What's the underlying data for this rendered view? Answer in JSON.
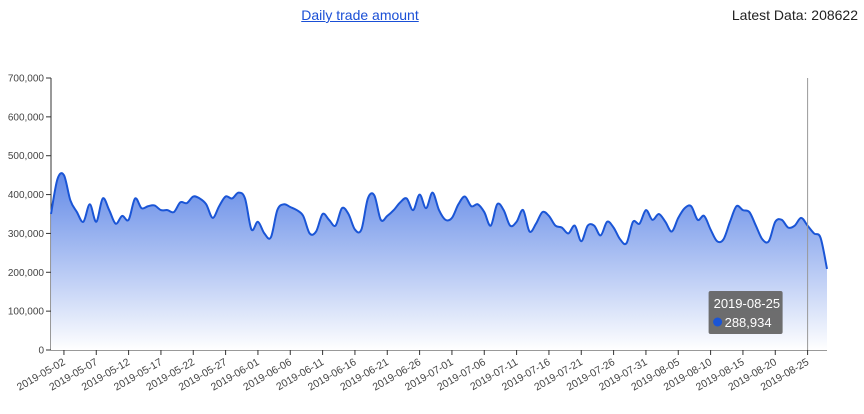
{
  "header": {
    "title_link": "Daily trade amount",
    "latest_label": "Latest Data: ",
    "latest_value": "208622"
  },
  "tooltip": {
    "date": "2019-08-25",
    "value": "288,934"
  },
  "colors": {
    "line": "#1a55d6",
    "area_top": "#5b84e6",
    "area_bottom": "#ffffff",
    "tooltip_bg": "#666666",
    "tooltip_marker": "#1a55d6"
  },
  "chart_data": {
    "type": "area",
    "title": "Daily trade amount",
    "xlabel": "",
    "ylabel": "",
    "ylim": [
      0,
      700000
    ],
    "yticks": [
      "0",
      "100,000",
      "200,000",
      "300,000",
      "400,000",
      "500,000",
      "600,000",
      "700,000"
    ],
    "xticks": [
      "2019-05-02",
      "2019-05-07",
      "2019-05-12",
      "2019-05-17",
      "2019-05-22",
      "2019-05-27",
      "2019-06-01",
      "2019-06-06",
      "2019-06-11",
      "2019-06-16",
      "2019-06-21",
      "2019-06-26",
      "2019-07-01",
      "2019-07-06",
      "2019-07-11",
      "2019-07-16",
      "2019-07-21",
      "2019-07-26",
      "2019-07-31",
      "2019-08-05",
      "2019-08-10",
      "2019-08-15",
      "2019-08-20",
      "2019-08-25"
    ],
    "x_start": "2019-04-30",
    "grid": false,
    "series": [
      {
        "values": [
          350000,
          440000,
          450000,
          385000,
          355000,
          330000,
          375000,
          330000,
          390000,
          360000,
          325000,
          345000,
          335000,
          390000,
          365000,
          370000,
          372000,
          360000,
          360000,
          355000,
          380000,
          378000,
          395000,
          390000,
          375000,
          340000,
          370000,
          395000,
          390000,
          405000,
          390000,
          310000,
          330000,
          300000,
          290000,
          360000,
          375000,
          368000,
          360000,
          345000,
          300000,
          305000,
          350000,
          335000,
          320000,
          365000,
          350000,
          310000,
          310000,
          390000,
          398000,
          335000,
          345000,
          360000,
          380000,
          390000,
          360000,
          400000,
          365000,
          405000,
          360000,
          335000,
          340000,
          375000,
          395000,
          370000,
          375000,
          355000,
          320000,
          375000,
          360000,
          320000,
          330000,
          360000,
          305000,
          325000,
          355000,
          345000,
          320000,
          315000,
          300000,
          320000,
          280000,
          320000,
          320000,
          295000,
          330000,
          315000,
          285000,
          275000,
          330000,
          325000,
          360000,
          335000,
          350000,
          330000,
          305000,
          340000,
          365000,
          370000,
          335000,
          345000,
          310000,
          280000,
          285000,
          330000,
          370000,
          360000,
          355000,
          320000,
          285000,
          280000,
          330000,
          335000,
          315000,
          320000,
          340000,
          320000,
          300000,
          288934,
          208622
        ]
      }
    ]
  }
}
